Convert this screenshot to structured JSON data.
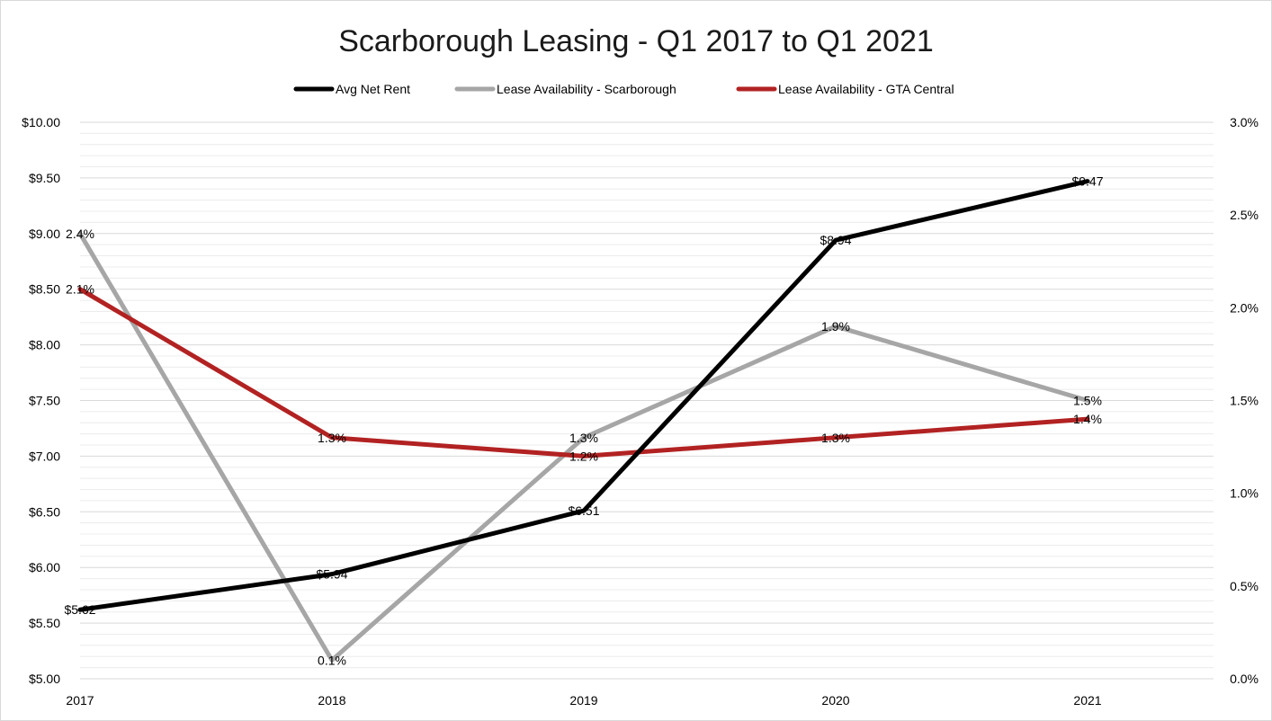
{
  "chart_data": {
    "type": "line",
    "title": "Scarborough Leasing - Q1 2017 to Q1 2021",
    "categories": [
      "2017",
      "2018",
      "2019",
      "2020",
      "2021"
    ],
    "y_left": {
      "range": [
        5.0,
        10.0
      ],
      "tick_values": [
        5.0,
        5.5,
        6.0,
        6.5,
        7.0,
        7.5,
        8.0,
        8.5,
        9.0,
        9.5,
        10.0
      ],
      "tick_labels": [
        "$5.00",
        "$5.50",
        "$6.00",
        "$6.50",
        "$7.00",
        "$7.50",
        "$8.00",
        "$8.50",
        "$9.00",
        "$9.50",
        "$10.00"
      ]
    },
    "y_right": {
      "range": [
        0.0,
        3.0
      ],
      "tick_values": [
        0.0,
        0.5,
        1.0,
        1.5,
        2.0,
        2.5,
        3.0
      ],
      "tick_labels": [
        "0.0%",
        "0.5%",
        "1.0%",
        "1.5%",
        "2.0%",
        "2.5%",
        "3.0%"
      ]
    },
    "grid": true,
    "legend_position": "top-center",
    "series": [
      {
        "name": "Avg Net Rent",
        "axis": "left",
        "color": "#000000",
        "values": [
          5.62,
          5.94,
          6.51,
          8.94,
          9.47
        ],
        "labels": [
          "$5.62",
          "$5.94",
          "$6.51",
          "$8.94",
          "$9.47"
        ]
      },
      {
        "name": "Lease Availability - Scarborough",
        "axis": "right",
        "color": "#a6a6a6",
        "values": [
          2.4,
          0.1,
          1.3,
          1.9,
          1.5
        ],
        "labels": [
          "2.4%",
          "0.1%",
          "1.3%",
          "1.9%",
          "1.5%"
        ]
      },
      {
        "name": "Lease Availability - GTA Central",
        "axis": "right",
        "color": "#b22222",
        "values": [
          2.1,
          1.3,
          1.2,
          1.3,
          1.4
        ],
        "labels": [
          "2.1%",
          "1.3%",
          "1.2%",
          "1.3%",
          "1.4%"
        ]
      }
    ]
  }
}
